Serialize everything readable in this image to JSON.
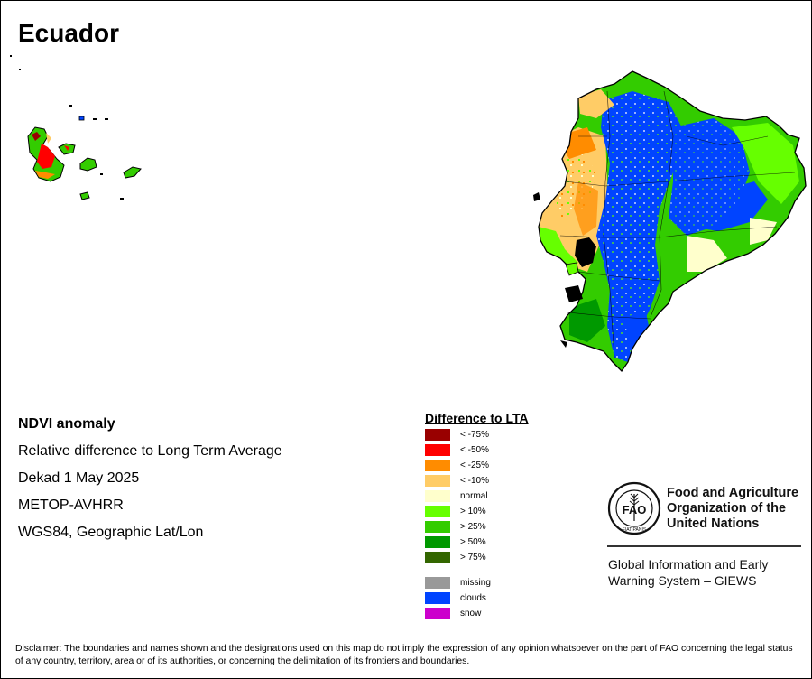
{
  "map": {
    "title": "Ecuador"
  },
  "info": {
    "title": "NDVI anomaly",
    "subtitle": "Relative difference to Long Term Average",
    "dekad": "Dekad 1 May 2025",
    "sensor": "METOP-AVHRR",
    "projection": "WGS84, Geographic Lat/Lon"
  },
  "legend": {
    "title": "Difference to LTA",
    "items": [
      {
        "label": "< -75%",
        "color": "#990000"
      },
      {
        "label": "< -50%",
        "color": "#ff0000"
      },
      {
        "label": "< -25%",
        "color": "#ff8c00"
      },
      {
        "label": "< -10%",
        "color": "#ffcc66"
      },
      {
        "label": "normal",
        "color": "#ffffcc"
      },
      {
        "label": "> 10%",
        "color": "#66ff00"
      },
      {
        "label": "> 25%",
        "color": "#33cc00"
      },
      {
        "label": "> 50%",
        "color": "#009900"
      },
      {
        "label": "> 75%",
        "color": "#336600"
      },
      {
        "label": "missing",
        "color": "#999999"
      },
      {
        "label": "clouds",
        "color": "#0044ff"
      },
      {
        "label": "snow",
        "color": "#cc00cc"
      }
    ]
  },
  "logo": {
    "emblem_text": "FAO",
    "emblem_motto": "FIAT PANIS",
    "org_line1": "Food and Agriculture",
    "org_line2": "Organization of the",
    "org_line3": "United Nations",
    "system_line1": "Global Information and Early",
    "system_line2": "Warning System – GIEWS"
  },
  "disclaimer": "Disclaimer: The boundaries and names shown and the designations used on this map do not imply the expression of any opinion whatsoever on the part of FAO concerning the legal status of any country, territory, area or of its authorities, or concerning the delimitation of its frontiers and boundaries."
}
